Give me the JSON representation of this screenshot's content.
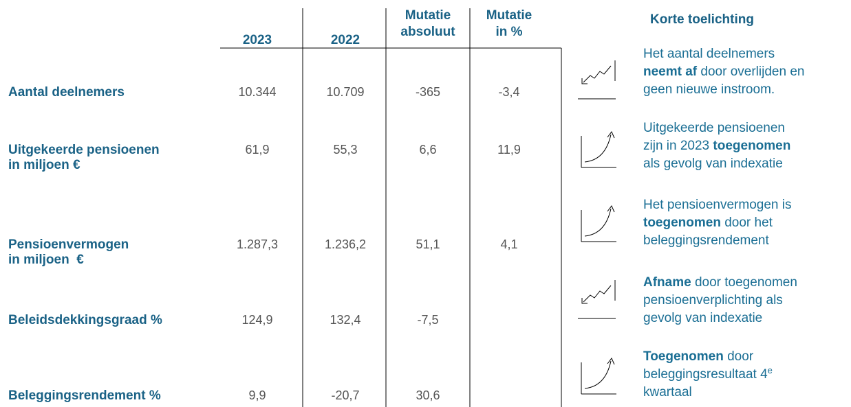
{
  "header": {
    "columns": [
      [
        "2023"
      ],
      [
        "2022"
      ],
      [
        "Mutatie",
        "absoluut"
      ],
      [
        "Mutatie",
        "in %"
      ]
    ],
    "explanation": "Korte toelichting"
  },
  "rows": [
    {
      "label": [
        "Aantal deelnemers"
      ],
      "values": [
        "10.344",
        "10.709",
        "-365",
        "-3,4"
      ],
      "icon": "decline",
      "note": [
        [
          {
            "text": "Het aantal deelnemers"
          }
        ],
        [
          {
            "text": "neemt af",
            "bold": true
          },
          {
            "text": " door overlijden en"
          }
        ],
        [
          {
            "text": "geen nieuwe instroom."
          }
        ]
      ]
    },
    {
      "label": [
        "Uitgekeerde pensioenen",
        "in miljoen €"
      ],
      "values": [
        "61,9",
        "55,3",
        "6,6",
        "11,9"
      ],
      "icon": "growth",
      "note": [
        [
          {
            "text": "Uitgekeerde pensioenen"
          }
        ],
        [
          {
            "text": "zijn in 2023 "
          },
          {
            "text": "toegenomen",
            "bold": true
          }
        ],
        [
          {
            "text": "als gevolg van indexatie"
          }
        ]
      ]
    },
    {
      "label": [
        "Pensioenvermogen",
        "in miljoen  €"
      ],
      "values": [
        "1.287,3",
        "1.236,2",
        "51,1",
        "4,1"
      ],
      "icon": "growth",
      "note": [
        [
          {
            "text": "Het pensioenvermogen is"
          }
        ],
        [
          {
            "text": "toegenomen",
            "bold": true
          },
          {
            "text": " door het"
          }
        ],
        [
          {
            "text": "beleggingsrendement"
          }
        ]
      ]
    },
    {
      "label": [
        "Beleidsdekkingsgraad %"
      ],
      "values": [
        "124,9",
        "132,4",
        "-7,5"
      ],
      "icon": "decline",
      "note": [
        [
          {
            "text": "Afname",
            "bold": true
          },
          {
            "text": " door toegenomen"
          }
        ],
        [
          {
            "text": "pensioenverplichting als"
          }
        ],
        [
          {
            "text": "gevolg van indexatie"
          }
        ]
      ]
    },
    {
      "label": [
        "Beleggingsrendement %"
      ],
      "values": [
        "9,9",
        "-20,7",
        "30,6"
      ],
      "icon": "growth",
      "note": [
        [
          {
            "text": "Toegenomen",
            "bold": true
          },
          {
            "text": " door"
          }
        ],
        [
          {
            "text": "beleggingsresultaat 4"
          },
          {
            "text": "e",
            "sup": true
          }
        ],
        [
          {
            "text": "kwartaal"
          }
        ]
      ]
    }
  ]
}
